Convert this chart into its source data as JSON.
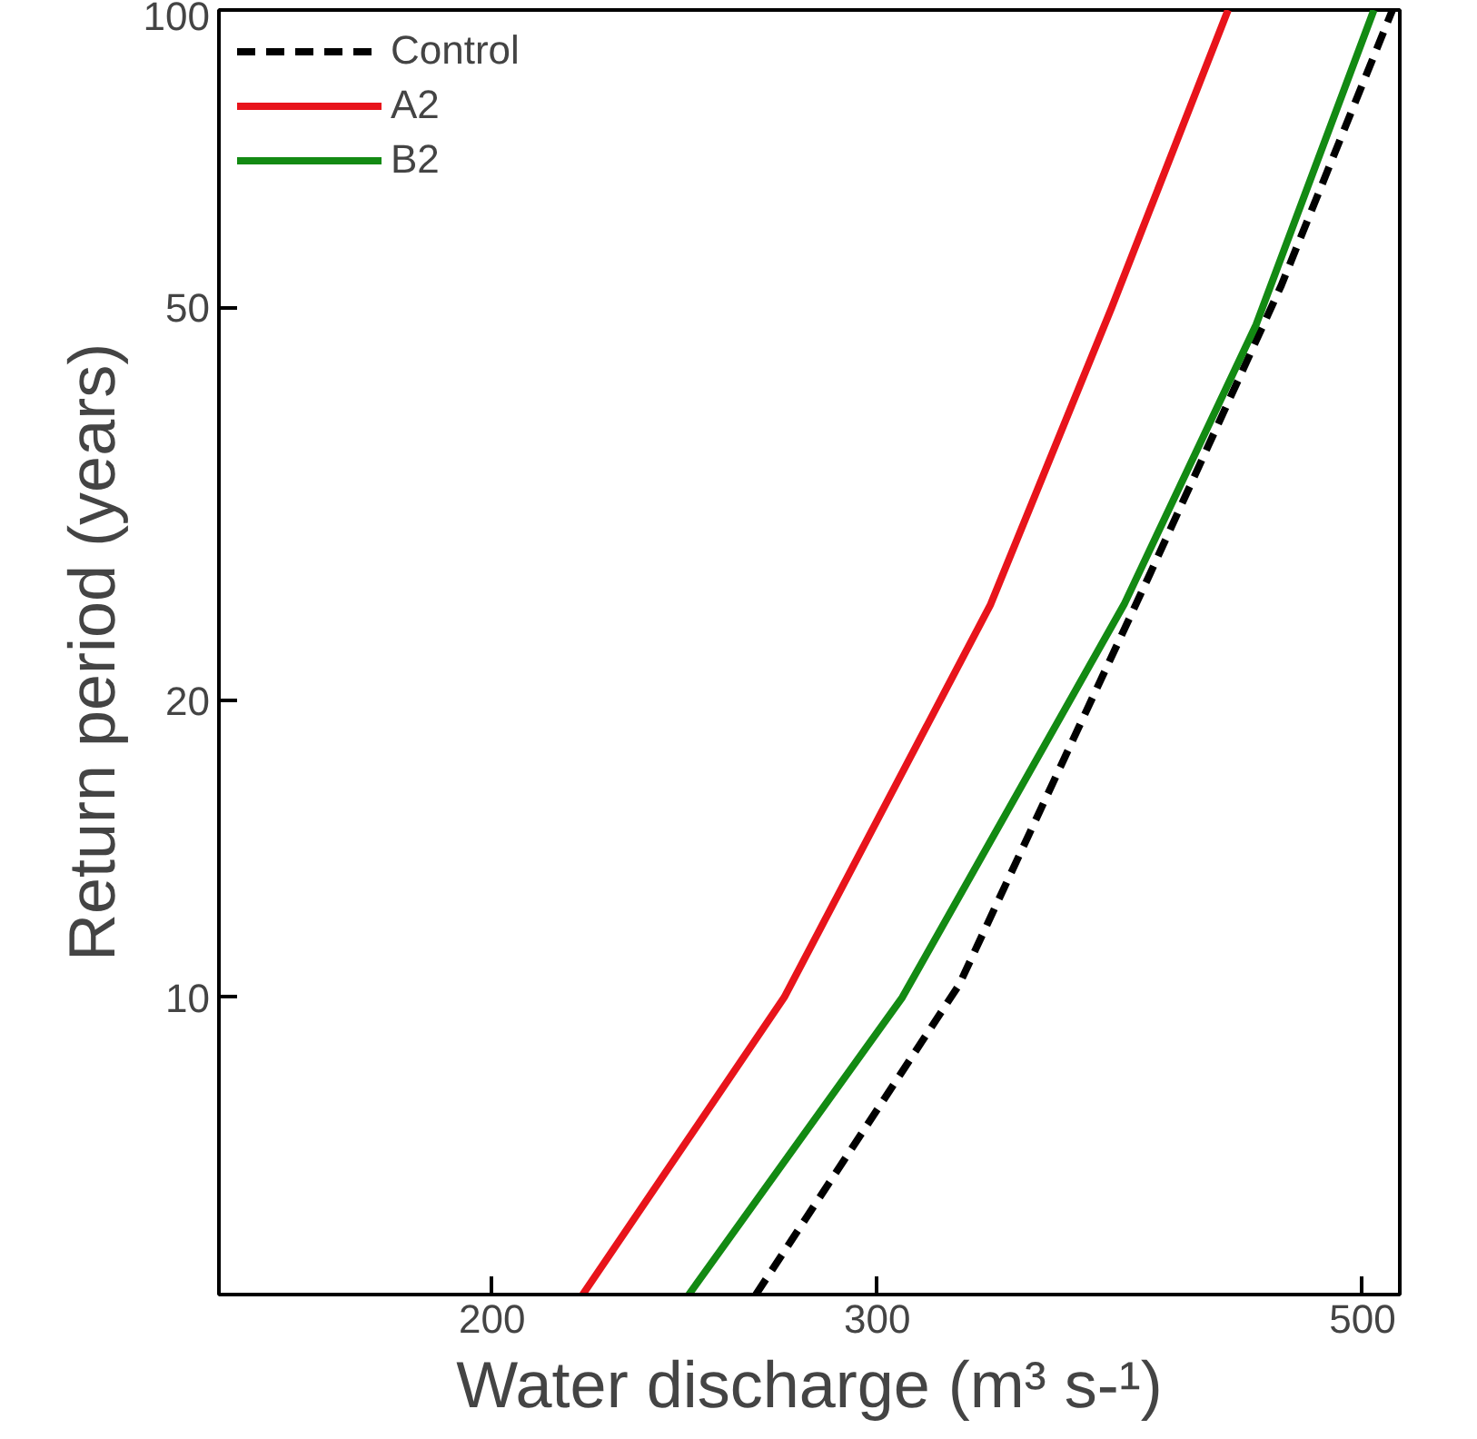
{
  "chart_data": {
    "type": "line",
    "xlabel": "Water discharge (m³ s-¹)",
    "ylabel": "Return period (years)",
    "log": "xy",
    "xlim": [
      150,
      520
    ],
    "ylim": [
      5,
      100
    ],
    "xticks": [
      200,
      300,
      500
    ],
    "yticks": [
      10,
      20,
      50,
      100
    ],
    "grid": false,
    "legend": "top left",
    "marker": "none",
    "series": [
      {
        "name": "Control",
        "color": "#000000",
        "line_style": "dashed",
        "x": [
          264,
          327,
          399,
          459,
          516
        ],
        "values": [
          5,
          10.3,
          26.6,
          52.6,
          100
        ]
      },
      {
        "name": "A2",
        "color": "#e8141b",
        "line_style": "solid",
        "x": [
          220,
          272,
          338,
          384,
          434
        ],
        "values": [
          5,
          10,
          25,
          50,
          100
        ]
      },
      {
        "name": "B2",
        "color": "#138a13",
        "line_style": "solid",
        "x": [
          246,
          308,
          389,
          447,
          506
        ],
        "values": [
          5,
          10,
          25,
          48,
          100
        ]
      }
    ]
  }
}
